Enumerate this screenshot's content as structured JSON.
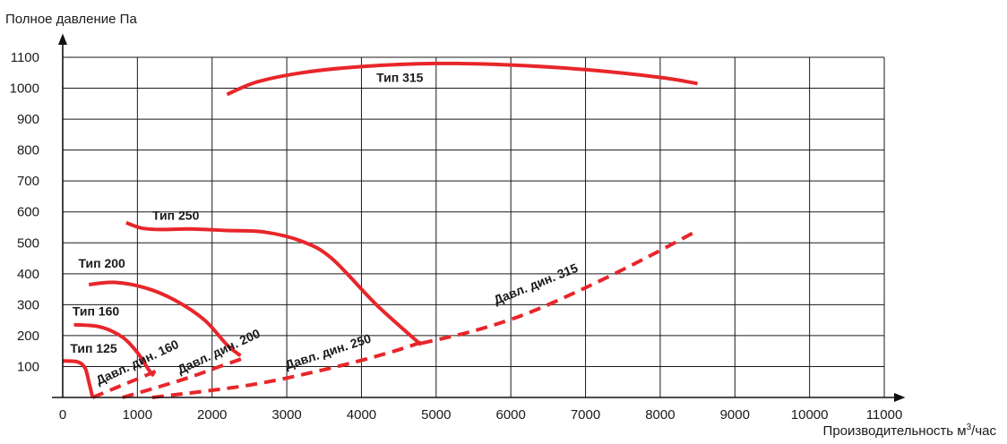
{
  "chart_data": {
    "type": "line",
    "ylabel": "Полное давление Па",
    "xlabel_main": "Производительность м",
    "xlabel_sup": "3",
    "xlabel_tail": "/час",
    "xlim": [
      0,
      11000
    ],
    "ylim": [
      0,
      1100
    ],
    "x_ticks": [
      "0",
      "1000",
      "2000",
      "3000",
      "4000",
      "5000",
      "6000",
      "7000",
      "8000",
      "9000",
      "10000",
      "11000"
    ],
    "y_ticks": [
      "100",
      "200",
      "300",
      "400",
      "500",
      "600",
      "700",
      "800",
      "900",
      "1000",
      "1100"
    ],
    "grid": true,
    "line_color": "#e8262a",
    "series": [
      {
        "name": "Тип 125",
        "style": "solid",
        "points": [
          [
            0,
            118
          ],
          [
            200,
            115
          ],
          [
            300,
            95
          ],
          [
            350,
            50
          ],
          [
            400,
            0
          ]
        ]
      },
      {
        "name": "Тип 160",
        "style": "solid",
        "points": [
          [
            150,
            235
          ],
          [
            500,
            228
          ],
          [
            800,
            195
          ],
          [
            1000,
            145
          ],
          [
            1150,
            90
          ],
          [
            1220,
            70
          ]
        ]
      },
      {
        "name": "Тип 200",
        "style": "solid",
        "points": [
          [
            350,
            365
          ],
          [
            700,
            372
          ],
          [
            1100,
            355
          ],
          [
            1500,
            315
          ],
          [
            1900,
            250
          ],
          [
            2200,
            170
          ],
          [
            2380,
            135
          ]
        ]
      },
      {
        "name": "Тип 250",
        "style": "solid",
        "points": [
          [
            850,
            565
          ],
          [
            1050,
            548
          ],
          [
            1300,
            543
          ],
          [
            1700,
            545
          ],
          [
            2200,
            540
          ],
          [
            2700,
            535
          ],
          [
            3200,
            505
          ],
          [
            3600,
            450
          ],
          [
            4200,
            300
          ],
          [
            4800,
            170
          ]
        ]
      },
      {
        "name": "Тип 315",
        "style": "solid",
        "points": [
          [
            2200,
            980
          ],
          [
            2600,
            1020
          ],
          [
            3200,
            1050
          ],
          [
            4000,
            1070
          ],
          [
            5000,
            1080
          ],
          [
            6000,
            1075
          ],
          [
            7000,
            1060
          ],
          [
            8000,
            1035
          ],
          [
            8500,
            1015
          ]
        ]
      },
      {
        "name": "Давл. дин. 160",
        "style": "dashed",
        "points": [
          [
            400,
            0
          ],
          [
            700,
            30
          ],
          [
            1000,
            60
          ],
          [
            1300,
            90
          ]
        ]
      },
      {
        "name": "Давл. дин. 200",
        "style": "dashed",
        "points": [
          [
            800,
            0
          ],
          [
            1200,
            28
          ],
          [
            1700,
            65
          ],
          [
            2100,
            100
          ],
          [
            2400,
            125
          ]
        ]
      },
      {
        "name": "Давл. дин. 250",
        "style": "dashed",
        "points": [
          [
            1200,
            0
          ],
          [
            2500,
            40
          ],
          [
            3500,
            90
          ],
          [
            4300,
            140
          ],
          [
            4800,
            178
          ]
        ]
      },
      {
        "name": "Давл. дин. 315",
        "style": "dashed",
        "points": [
          [
            4800,
            175
          ],
          [
            5500,
            215
          ],
          [
            6200,
            270
          ],
          [
            7000,
            355
          ],
          [
            7800,
            450
          ],
          [
            8500,
            540
          ]
        ]
      }
    ],
    "annotations": [
      {
        "text": "Тип 125",
        "x": 100,
        "y": 145,
        "angle": 0
      },
      {
        "text": "Тип 160",
        "x": 130,
        "y": 265,
        "angle": 0
      },
      {
        "text": "Тип 200",
        "x": 210,
        "y": 420,
        "angle": 0
      },
      {
        "text": "Тип 250",
        "x": 1200,
        "y": 575,
        "angle": 0
      },
      {
        "text": "Тип 315",
        "x": 4200,
        "y": 1020,
        "angle": 0
      },
      {
        "text": "Давл. дин. 160",
        "x": 480,
        "y": 40,
        "angle": -25
      },
      {
        "text": "Давл. дин. 200",
        "x": 1570,
        "y": 75,
        "angle": -25
      },
      {
        "text": "Давл. дин. 250",
        "x": 3000,
        "y": 90,
        "angle": -18
      },
      {
        "text": "Давл. дин. 315",
        "x": 5800,
        "y": 300,
        "angle": -22
      }
    ]
  }
}
